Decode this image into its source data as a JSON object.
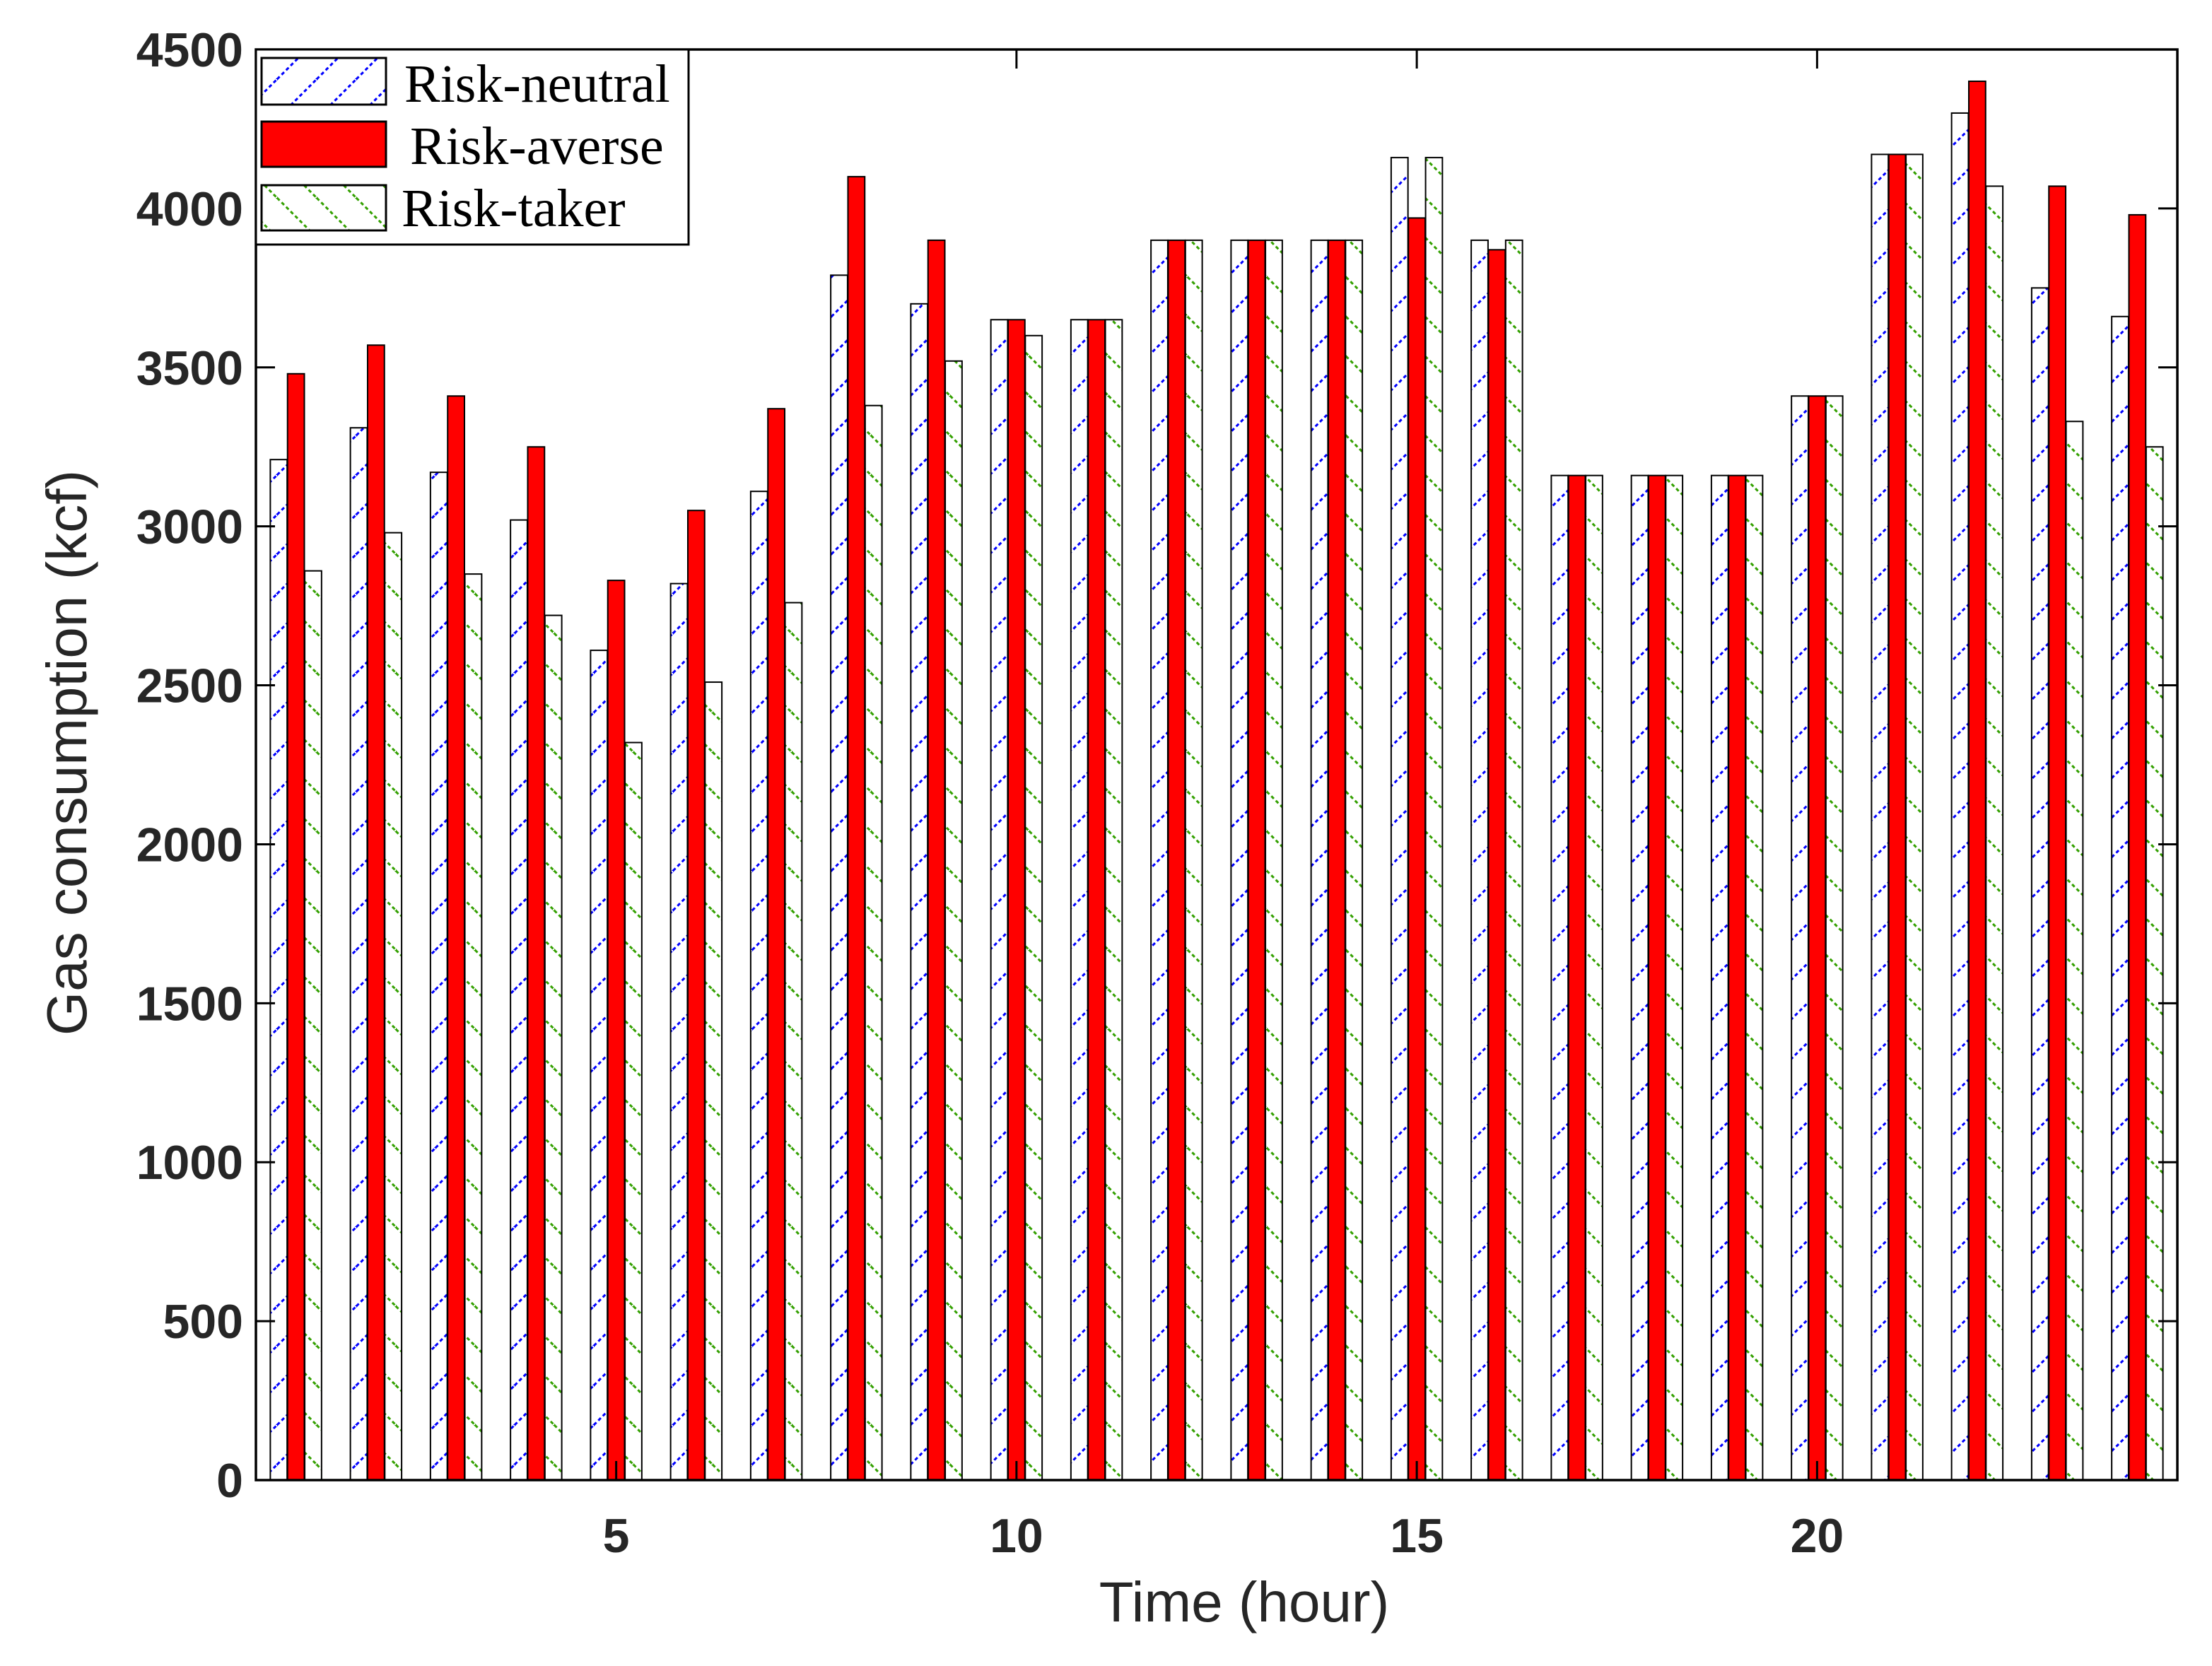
{
  "chart_data": {
    "type": "bar",
    "title": "",
    "xlabel": "Time (hour)",
    "ylabel": "Gas consumption (kcf)",
    "categories": [
      1,
      2,
      3,
      4,
      5,
      6,
      7,
      8,
      9,
      10,
      11,
      12,
      13,
      14,
      15,
      16,
      17,
      18,
      19,
      20,
      21,
      22,
      23,
      24
    ],
    "xlim": [
      0.5,
      24.5
    ],
    "ylim": [
      0,
      4500
    ],
    "xticks": [
      5,
      10,
      15,
      20
    ],
    "yticks": [
      0,
      500,
      1000,
      1500,
      2000,
      2500,
      3000,
      3500,
      4000,
      4500
    ],
    "grid": false,
    "legend_position": "top-left",
    "series": [
      {
        "name": "Risk-neutral",
        "color": "#0000ff",
        "values": [
          3210,
          3310,
          3170,
          3020,
          2610,
          2820,
          3110,
          3790,
          3700,
          3650,
          3650,
          3900,
          3900,
          3900,
          4160,
          3900,
          3160,
          3160,
          3160,
          3410,
          4170,
          4300,
          3750,
          3660
        ]
      },
      {
        "name": "Risk-averse",
        "color": "#ff0000",
        "values": [
          3480,
          3570,
          3410,
          3250,
          2830,
          3050,
          3370,
          4100,
          3900,
          3650,
          3650,
          3900,
          3900,
          3900,
          3970,
          3870,
          3160,
          3160,
          3160,
          3410,
          4170,
          4400,
          4070,
          3980
        ]
      },
      {
        "name": "Risk-taker",
        "color": "#33a000",
        "values": [
          2860,
          2980,
          2850,
          2720,
          2320,
          2510,
          2760,
          3380,
          3520,
          3600,
          3650,
          3900,
          3900,
          3900,
          4160,
          3900,
          3160,
          3160,
          3160,
          3410,
          4170,
          4070,
          3330,
          3250
        ]
      }
    ]
  }
}
